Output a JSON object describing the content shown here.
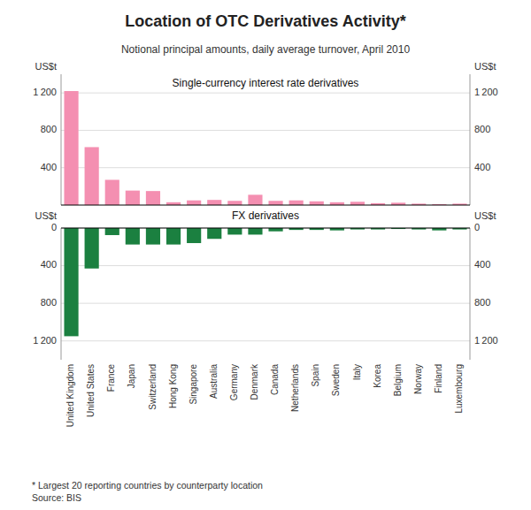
{
  "chart_data": [
    {
      "type": "bar",
      "title": "Location of OTC Derivatives Activity*",
      "subtitle": "Notional principal amounts, daily average turnover, April 2010",
      "footnote": "*  Largest 20 reporting countries by counterparty location\nSource: BIS",
      "categories": [
        "United Kingdom",
        "United States",
        "France",
        "Japan",
        "Switzerland",
        "Hong Kong",
        "Singapore",
        "Australia",
        "Germany",
        "Denmark",
        "Canada",
        "Netherlands",
        "Spain",
        "Sweden",
        "Italy",
        "Korea",
        "Belgium",
        "Norway",
        "Finland",
        "Luxembourg"
      ],
      "series": [
        {
          "name": "Single-currency interest rate derivatives",
          "color": "#F48FB1",
          "values": [
            1220,
            620,
            270,
            155,
            150,
            30,
            50,
            55,
            45,
            110,
            45,
            50,
            40,
            30,
            35,
            20,
            25,
            15,
            10,
            15
          ]
        }
      ],
      "ylabel": "US$t",
      "y2label": "US$t",
      "ylim": [
        0,
        1400
      ],
      "yticks": [
        400,
        800,
        {
          "value": 1200,
          "label": "1 200"
        }
      ],
      "y2lim": [
        0,
        1400
      ],
      "y2ticks": [
        400,
        800,
        {
          "value": 1200,
          "label": "1 200"
        }
      ],
      "grid": true,
      "tick_labels": "y"
    },
    {
      "type": "bar",
      "categories": [
        "United Kingdom",
        "United States",
        "France",
        "Japan",
        "Switzerland",
        "Hong Kong",
        "Singapore",
        "Australia",
        "Germany",
        "Denmark",
        "Canada",
        "Netherlands",
        "Spain",
        "Sweden",
        "Italy",
        "Korea",
        "Belgium",
        "Norway",
        "Finland",
        "Luxembourg"
      ],
      "series": [
        {
          "name": "FX derivatives",
          "color": "#1B8040",
          "values": [
            1150,
            430,
            75,
            175,
            175,
            175,
            160,
            115,
            70,
            70,
            35,
            20,
            20,
            25,
            15,
            15,
            10,
            15,
            25,
            15
          ]
        }
      ],
      "ylabel": "US$t",
      "y2label": "US$t",
      "ylim": [
        1400,
        0
      ],
      "yticks": [
        0,
        400,
        800,
        {
          "value": 1200,
          "label": "1 200"
        }
      ],
      "y2lim": [
        1400,
        0
      ],
      "y2ticks": [
        0,
        400,
        800,
        {
          "value": 1200,
          "label": "1 200"
        }
      ],
      "grid": true
    }
  ]
}
